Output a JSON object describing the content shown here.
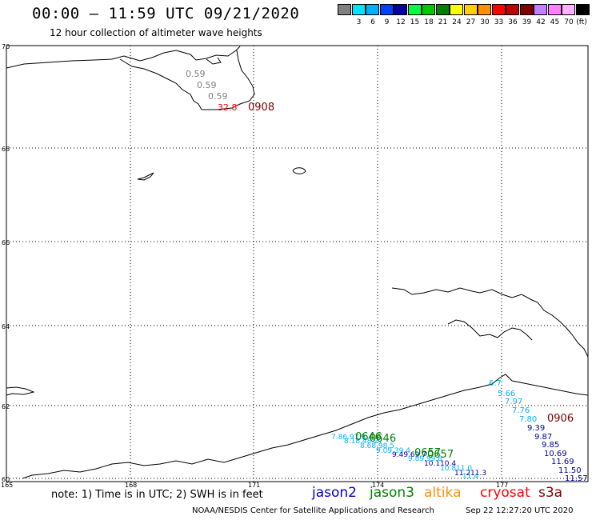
{
  "title": "00:00 – 11:59 UTC 09/21/2020",
  "subtitle": "12 hour collection of altimeter wave heights",
  "colorbar": {
    "unit": "(ft)",
    "swatches": [
      {
        "color": "#808080",
        "label": ""
      },
      {
        "color": "#00e5ff",
        "label": "3"
      },
      {
        "color": "#00b0ff",
        "label": "6"
      },
      {
        "color": "#0040ff",
        "label": "9"
      },
      {
        "color": "#0000a0",
        "label": "12"
      },
      {
        "color": "#00ff40",
        "label": "15"
      },
      {
        "color": "#00c800",
        "label": "18"
      },
      {
        "color": "#008000",
        "label": "21"
      },
      {
        "color": "#ffff00",
        "label": "24"
      },
      {
        "color": "#ffd000",
        "label": "27"
      },
      {
        "color": "#ff9000",
        "label": "30"
      },
      {
        "color": "#ff0000",
        "label": "33"
      },
      {
        "color": "#c00000",
        "label": "36"
      },
      {
        "color": "#800000",
        "label": "39"
      },
      {
        "color": "#c080ff",
        "label": "42"
      },
      {
        "color": "#ff80ff",
        "label": "45"
      },
      {
        "color": "#ffb0ff",
        "label": "70"
      },
      {
        "color": "#000000",
        "label": ""
      }
    ]
  },
  "lat_labels": [
    "70",
    "68",
    "66",
    "64",
    "62",
    "60"
  ],
  "lon_labels": [
    "165",
    "168",
    "171",
    "174",
    "177"
  ],
  "arctic_obs": {
    "values": [
      "0.59",
      "0.59",
      "0.59"
    ],
    "red_value": "32.8",
    "time": "0908"
  },
  "pacific_obs": {
    "cyan_values": [
      "6.7",
      "5.66",
      "7.97",
      "7.76",
      "7.80"
    ],
    "time": "0906",
    "blue_values": [
      "9.39",
      "9.87",
      "9.85",
      "10.69",
      "11.69",
      "11.50",
      "11.57"
    ]
  },
  "track_times": [
    "0646",
    "0657"
  ],
  "note": "note: 1) Time is in UTC; 2) SWH is in feet",
  "missions": [
    {
      "name": "jason2",
      "color": "#0000cc"
    },
    {
      "name": "jason3",
      "color": "#008000"
    },
    {
      "name": "altika",
      "color": "#ff9000"
    },
    {
      "name": "cryosat",
      "color": "#ff0000"
    },
    {
      "name": "s3a",
      "color": "#800000"
    }
  ],
  "credit": "NOAA/NESDIS Center for Satellite Applications and Research",
  "timestamp": "Sep 22 12:27:20 UTC 2020"
}
